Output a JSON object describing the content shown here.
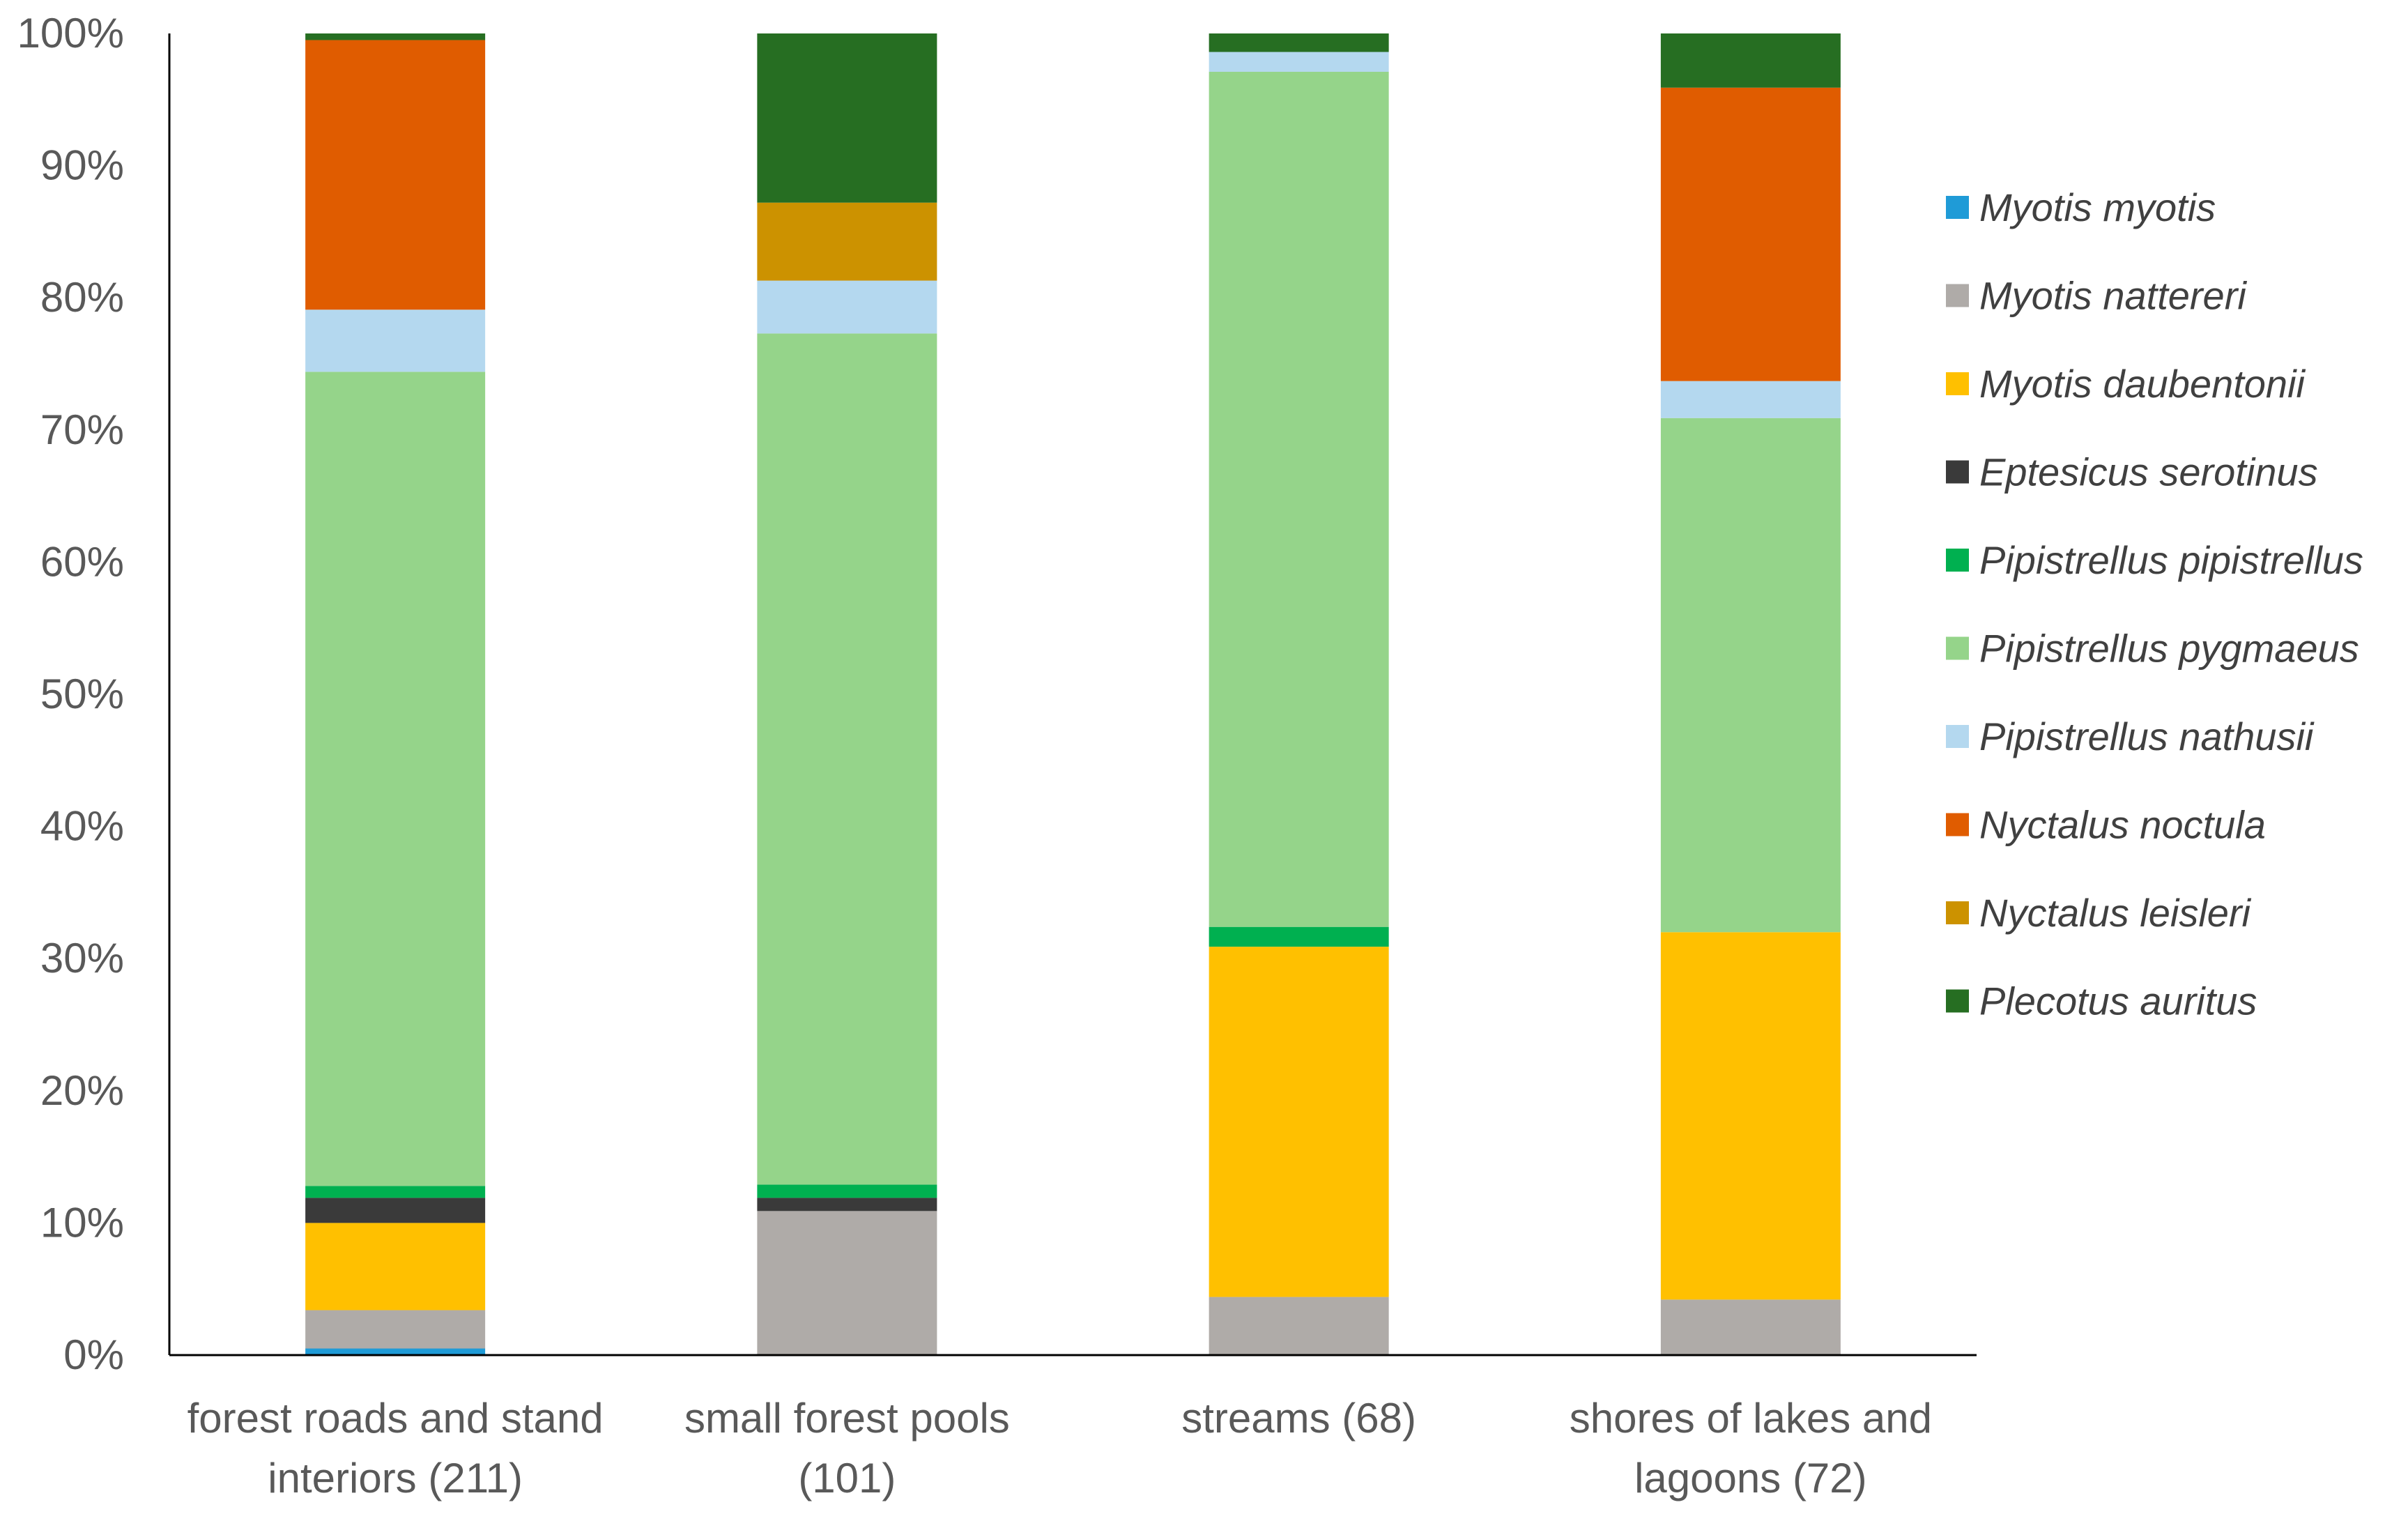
{
  "chart_data": {
    "type": "bar",
    "stacked": true,
    "percent_stacked": true,
    "title": "",
    "xlabel": "",
    "ylabel": "",
    "ylim": [
      0,
      100
    ],
    "yticks": [
      "0%",
      "10%",
      "20%",
      "30%",
      "40%",
      "50%",
      "60%",
      "70%",
      "80%",
      "90%",
      "100%"
    ],
    "categories": [
      [
        "forest roads and stand",
        "interiors (211)"
      ],
      [
        "small forest pools",
        "(101)"
      ],
      [
        "streams (68)"
      ],
      [
        "shores of lakes and",
        "lagoons (72)"
      ]
    ],
    "legend_position": "right",
    "series": [
      {
        "name": "Myotis myotis",
        "color": "#1F9BD7",
        "values": [
          0.5,
          0,
          0,
          0
        ]
      },
      {
        "name": "Myotis nattereri",
        "color": "#AFABA8",
        "values": [
          2.9,
          10.9,
          4.4,
          4.2
        ]
      },
      {
        "name": "Myotis daubentonii",
        "color": "#FFC000",
        "values": [
          6.6,
          0,
          26.5,
          27.8
        ]
      },
      {
        "name": "Eptesicus serotinus",
        "color": "#3A3A3A",
        "values": [
          1.9,
          1.0,
          0,
          0
        ]
      },
      {
        "name": "Pipistrellus pipistrellus",
        "color": "#00B050",
        "values": [
          0.9,
          1.0,
          1.5,
          0
        ]
      },
      {
        "name": "Pipistrellus pygmaeus",
        "color": "#95D48A",
        "values": [
          61.6,
          64.4,
          64.7,
          38.9
        ]
      },
      {
        "name": "Pipistrellus nathusii",
        "color": "#B4D8EF",
        "values": [
          4.7,
          4.0,
          1.5,
          2.8
        ]
      },
      {
        "name": "Nyctalus noctula",
        "color": "#E05C00",
        "values": [
          20.4,
          0,
          0,
          22.2
        ]
      },
      {
        "name": "Nyctalus leisleri",
        "color": "#CC9200",
        "values": [
          0,
          5.9,
          0,
          0
        ]
      },
      {
        "name": "Plecotus auritus",
        "color": "#266E22",
        "values": [
          0.5,
          12.8,
          1.4,
          4.1
        ]
      }
    ]
  }
}
